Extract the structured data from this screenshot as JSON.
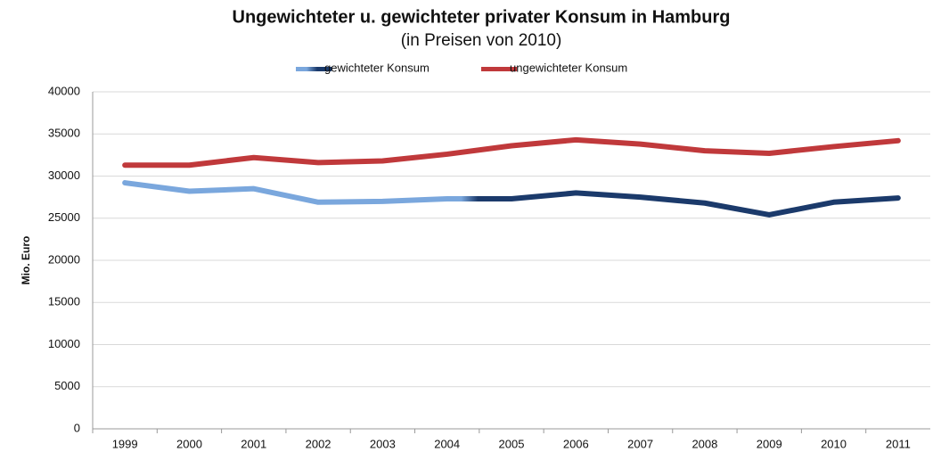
{
  "chart_data": {
    "type": "line",
    "title": "Ungewichteter u. gewichteter privater Konsum in Hamburg",
    "subtitle": "(in Preisen von 2010)",
    "y_label": "Mio. Euro",
    "categories": [
      "1999",
      "2000",
      "2001",
      "2002",
      "2003",
      "2004",
      "2005",
      "2006",
      "2007",
      "2008",
      "2009",
      "2010",
      "2011"
    ],
    "series": [
      {
        "name": "gewichteter Konsum",
        "colors": [
          "#7aa7dd",
          "#1b3a6b"
        ],
        "values": [
          29200,
          28200,
          28500,
          26900,
          27000,
          27300,
          27300,
          28000,
          27500,
          26800,
          25400,
          26900,
          27400
        ]
      },
      {
        "name": "ungewichteter Konsum",
        "color": "#c0393b",
        "values": [
          31300,
          31300,
          32200,
          31600,
          31800,
          32600,
          33600,
          34300,
          33800,
          33000,
          32700,
          33500,
          34200
        ]
      }
    ],
    "ylim": [
      0,
      40000
    ],
    "yticks": [
      0,
      5000,
      10000,
      15000,
      20000,
      25000,
      30000,
      35000,
      40000
    ],
    "grid": true,
    "legend": "top"
  }
}
